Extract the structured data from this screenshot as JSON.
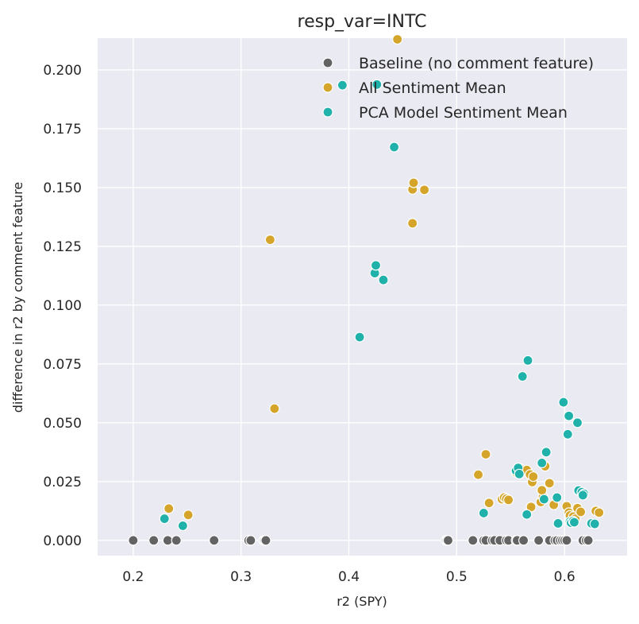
{
  "chart_data": {
    "type": "scatter",
    "title": "resp_var=INTC",
    "xlabel": "r2 (SPY)",
    "ylabel": "difference in r2 by comment feature",
    "xlim": [
      0.167,
      0.658
    ],
    "ylim": [
      -0.0065,
      0.2135
    ],
    "xticks": [
      "0.2",
      "0.3",
      "0.4",
      "0.5",
      "0.6"
    ],
    "xtick_values": [
      0.2,
      0.3,
      0.4,
      0.5,
      0.6
    ],
    "yticks": [
      "0.000",
      "0.025",
      "0.050",
      "0.075",
      "0.100",
      "0.125",
      "0.150",
      "0.175",
      "0.200"
    ],
    "ytick_values": [
      0.0,
      0.025,
      0.05,
      0.075,
      0.1,
      0.125,
      0.15,
      0.175,
      0.2
    ],
    "grid": true,
    "legend_position": "top-right",
    "background": "#eaeaf2",
    "series": [
      {
        "name": "Baseline (no comment feature)",
        "color": "#636363",
        "points": [
          [
            0.2,
            0
          ],
          [
            0.219,
            0
          ],
          [
            0.232,
            0
          ],
          [
            0.24,
            0
          ],
          [
            0.275,
            0
          ],
          [
            0.307,
            0
          ],
          [
            0.309,
            0
          ],
          [
            0.321,
            0
          ],
          [
            0.322,
            0
          ],
          [
            0.323,
            0
          ],
          [
            0.49,
            0
          ],
          [
            0.491,
            0
          ],
          [
            0.492,
            0
          ],
          [
            0.515,
            0
          ],
          [
            0.525,
            0
          ],
          [
            0.527,
            0
          ],
          [
            0.533,
            0
          ],
          [
            0.535,
            0
          ],
          [
            0.54,
            0
          ],
          [
            0.546,
            0
          ],
          [
            0.548,
            0
          ],
          [
            0.555,
            0
          ],
          [
            0.556,
            0
          ],
          [
            0.562,
            0
          ],
          [
            0.576,
            0
          ],
          [
            0.586,
            0
          ],
          [
            0.591,
            0
          ],
          [
            0.593,
            0
          ],
          [
            0.596,
            0
          ],
          [
            0.598,
            0
          ],
          [
            0.6,
            0
          ],
          [
            0.602,
            0
          ],
          [
            0.617,
            0
          ],
          [
            0.62,
            0
          ],
          [
            0.622,
            0
          ]
        ]
      },
      {
        "name": "All Sentiment Mean",
        "color": "#d4a52a",
        "points": [
          [
            0.233,
            0.0135
          ],
          [
            0.251,
            0.0108
          ],
          [
            0.327,
            0.1278
          ],
          [
            0.331,
            0.056
          ],
          [
            0.445,
            0.213
          ],
          [
            0.459,
            0.1492
          ],
          [
            0.46,
            0.152
          ],
          [
            0.459,
            0.1348
          ],
          [
            0.47,
            0.149
          ],
          [
            0.52,
            0.0279
          ],
          [
            0.527,
            0.0366
          ],
          [
            0.53,
            0.0159
          ],
          [
            0.542,
            0.0175
          ],
          [
            0.544,
            0.0182
          ],
          [
            0.546,
            0.0177
          ],
          [
            0.548,
            0.0172
          ],
          [
            0.555,
            0.0289
          ],
          [
            0.559,
            0.0305
          ],
          [
            0.565,
            0.0299
          ],
          [
            0.568,
            0.028
          ],
          [
            0.57,
            0.0248
          ],
          [
            0.571,
            0.0271
          ],
          [
            0.569,
            0.0142
          ],
          [
            0.578,
            0.0163
          ],
          [
            0.58,
            0.0186
          ],
          [
            0.579,
            0.0213
          ],
          [
            0.582,
            0.0315
          ],
          [
            0.586,
            0.0243
          ],
          [
            0.59,
            0.0151
          ],
          [
            0.602,
            0.0145
          ],
          [
            0.604,
            0.0118
          ],
          [
            0.605,
            0.0106
          ],
          [
            0.608,
            0.0101
          ],
          [
            0.61,
            0.0092
          ],
          [
            0.612,
            0.0137
          ],
          [
            0.615,
            0.0121
          ],
          [
            0.629,
            0.0125
          ],
          [
            0.632,
            0.0118
          ]
        ]
      },
      {
        "name": "PCA Model Sentiment Mean",
        "color": "#20b2aa",
        "points": [
          [
            0.229,
            0.0092
          ],
          [
            0.246,
            0.0062
          ],
          [
            0.394,
            0.1935
          ],
          [
            0.426,
            0.1938
          ],
          [
            0.442,
            0.1672
          ],
          [
            0.41,
            0.0864
          ],
          [
            0.424,
            0.1136
          ],
          [
            0.425,
            0.1169
          ],
          [
            0.432,
            0.1107
          ],
          [
            0.561,
            0.0697
          ],
          [
            0.566,
            0.0765
          ],
          [
            0.525,
            0.0116
          ],
          [
            0.555,
            0.0296
          ],
          [
            0.557,
            0.0308
          ],
          [
            0.558,
            0.0282
          ],
          [
            0.565,
            0.011
          ],
          [
            0.579,
            0.0329
          ],
          [
            0.581,
            0.0175
          ],
          [
            0.583,
            0.0375
          ],
          [
            0.593,
            0.0182
          ],
          [
            0.594,
            0.0072
          ],
          [
            0.599,
            0.0587
          ],
          [
            0.603,
            0.0451
          ],
          [
            0.604,
            0.0529
          ],
          [
            0.605,
            0.008
          ],
          [
            0.606,
            0.0075
          ],
          [
            0.608,
            0.0082
          ],
          [
            0.609,
            0.0077
          ],
          [
            0.612,
            0.05
          ],
          [
            0.613,
            0.0212
          ],
          [
            0.616,
            0.0205
          ],
          [
            0.618,
            0.0198
          ],
          [
            0.617,
            0.0192
          ],
          [
            0.625,
            0.0072
          ],
          [
            0.628,
            0.007
          ]
        ]
      }
    ]
  }
}
